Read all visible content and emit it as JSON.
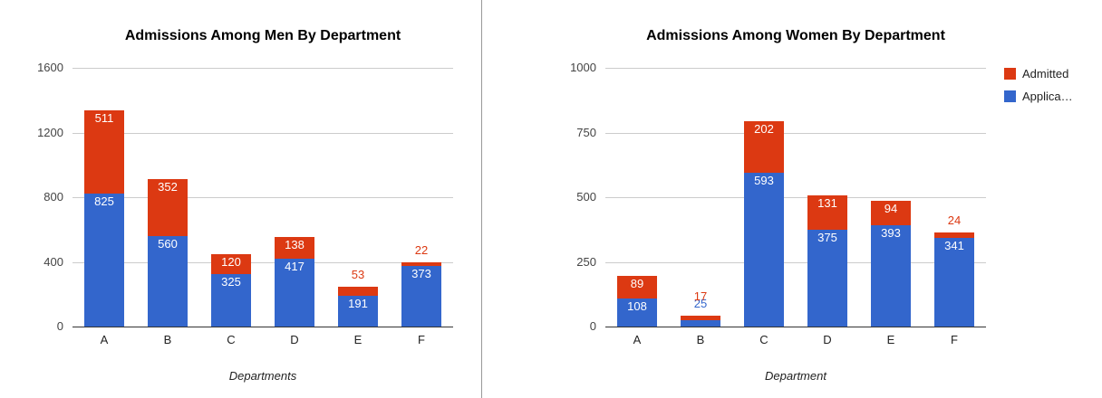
{
  "chart_data": [
    {
      "type": "bar",
      "stacked": true,
      "title": "Admissions Among Men By Department",
      "xlabel": "Departments",
      "ylabel": "",
      "categories": [
        "A",
        "B",
        "C",
        "D",
        "E",
        "F"
      ],
      "series": [
        {
          "name": "Applicants",
          "color": "#3366cc",
          "values": [
            825,
            560,
            325,
            417,
            191,
            373
          ]
        },
        {
          "name": "Admitted",
          "color": "#dc3912",
          "values": [
            511,
            352,
            120,
            138,
            53,
            22
          ]
        }
      ],
      "ylim": [
        0,
        1600
      ],
      "yticks": [
        0,
        400,
        800,
        1200,
        1600
      ],
      "grid": true
    },
    {
      "type": "bar",
      "stacked": true,
      "title": "Admissions Among Women By Department",
      "xlabel": "Department",
      "ylabel": "",
      "categories": [
        "A",
        "B",
        "C",
        "D",
        "E",
        "F"
      ],
      "series": [
        {
          "name": "Applicants",
          "color": "#3366cc",
          "values": [
            108,
            25,
            593,
            375,
            393,
            341
          ]
        },
        {
          "name": "Admitted",
          "color": "#dc3912",
          "values": [
            89,
            17,
            202,
            131,
            94,
            24
          ]
        }
      ],
      "ylim": [
        0,
        1000
      ],
      "yticks": [
        0,
        250,
        500,
        750,
        1000
      ],
      "grid": true
    }
  ],
  "legend": {
    "position": "top-right",
    "items": [
      {
        "label": "Admitted",
        "color": "#dc3912"
      },
      {
        "label": "Applica…",
        "color": "#3366cc"
      }
    ]
  }
}
